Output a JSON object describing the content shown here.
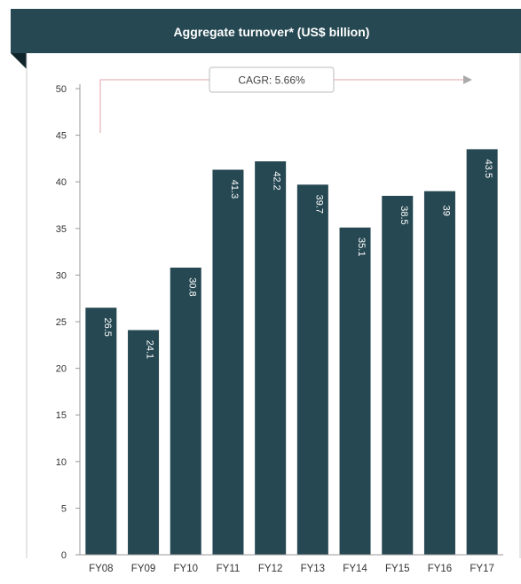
{
  "chart_data": {
    "type": "bar",
    "title": "Aggregate turnover* (US$ billion)",
    "categories": [
      "FY08",
      "FY09",
      "FY10",
      "FY11",
      "FY12",
      "FY13",
      "FY14",
      "FY15",
      "FY16",
      "FY17"
    ],
    "values": [
      26.5,
      24.1,
      30.8,
      41.3,
      42.2,
      39.7,
      35.1,
      38.5,
      39,
      43.5
    ],
    "data_labels": [
      "26.5",
      "24.1",
      "30.8",
      "41.3",
      "42.2",
      "39.7",
      "35.1",
      "38.5",
      "39",
      "43.5"
    ],
    "ylim": [
      0,
      50
    ],
    "yticks": [
      0,
      5,
      10,
      15,
      20,
      25,
      30,
      35,
      40,
      45,
      50
    ],
    "xlabel": "",
    "ylabel": "",
    "grid": false,
    "annotation": "CAGR: 5.66%",
    "colors": {
      "bar": "#264852",
      "banner": "#264852",
      "banner_shadow": "#10252b",
      "axis": "#999999",
      "arrow": "#e6a3a8",
      "arrow_head": "#aaaaaa"
    }
  }
}
